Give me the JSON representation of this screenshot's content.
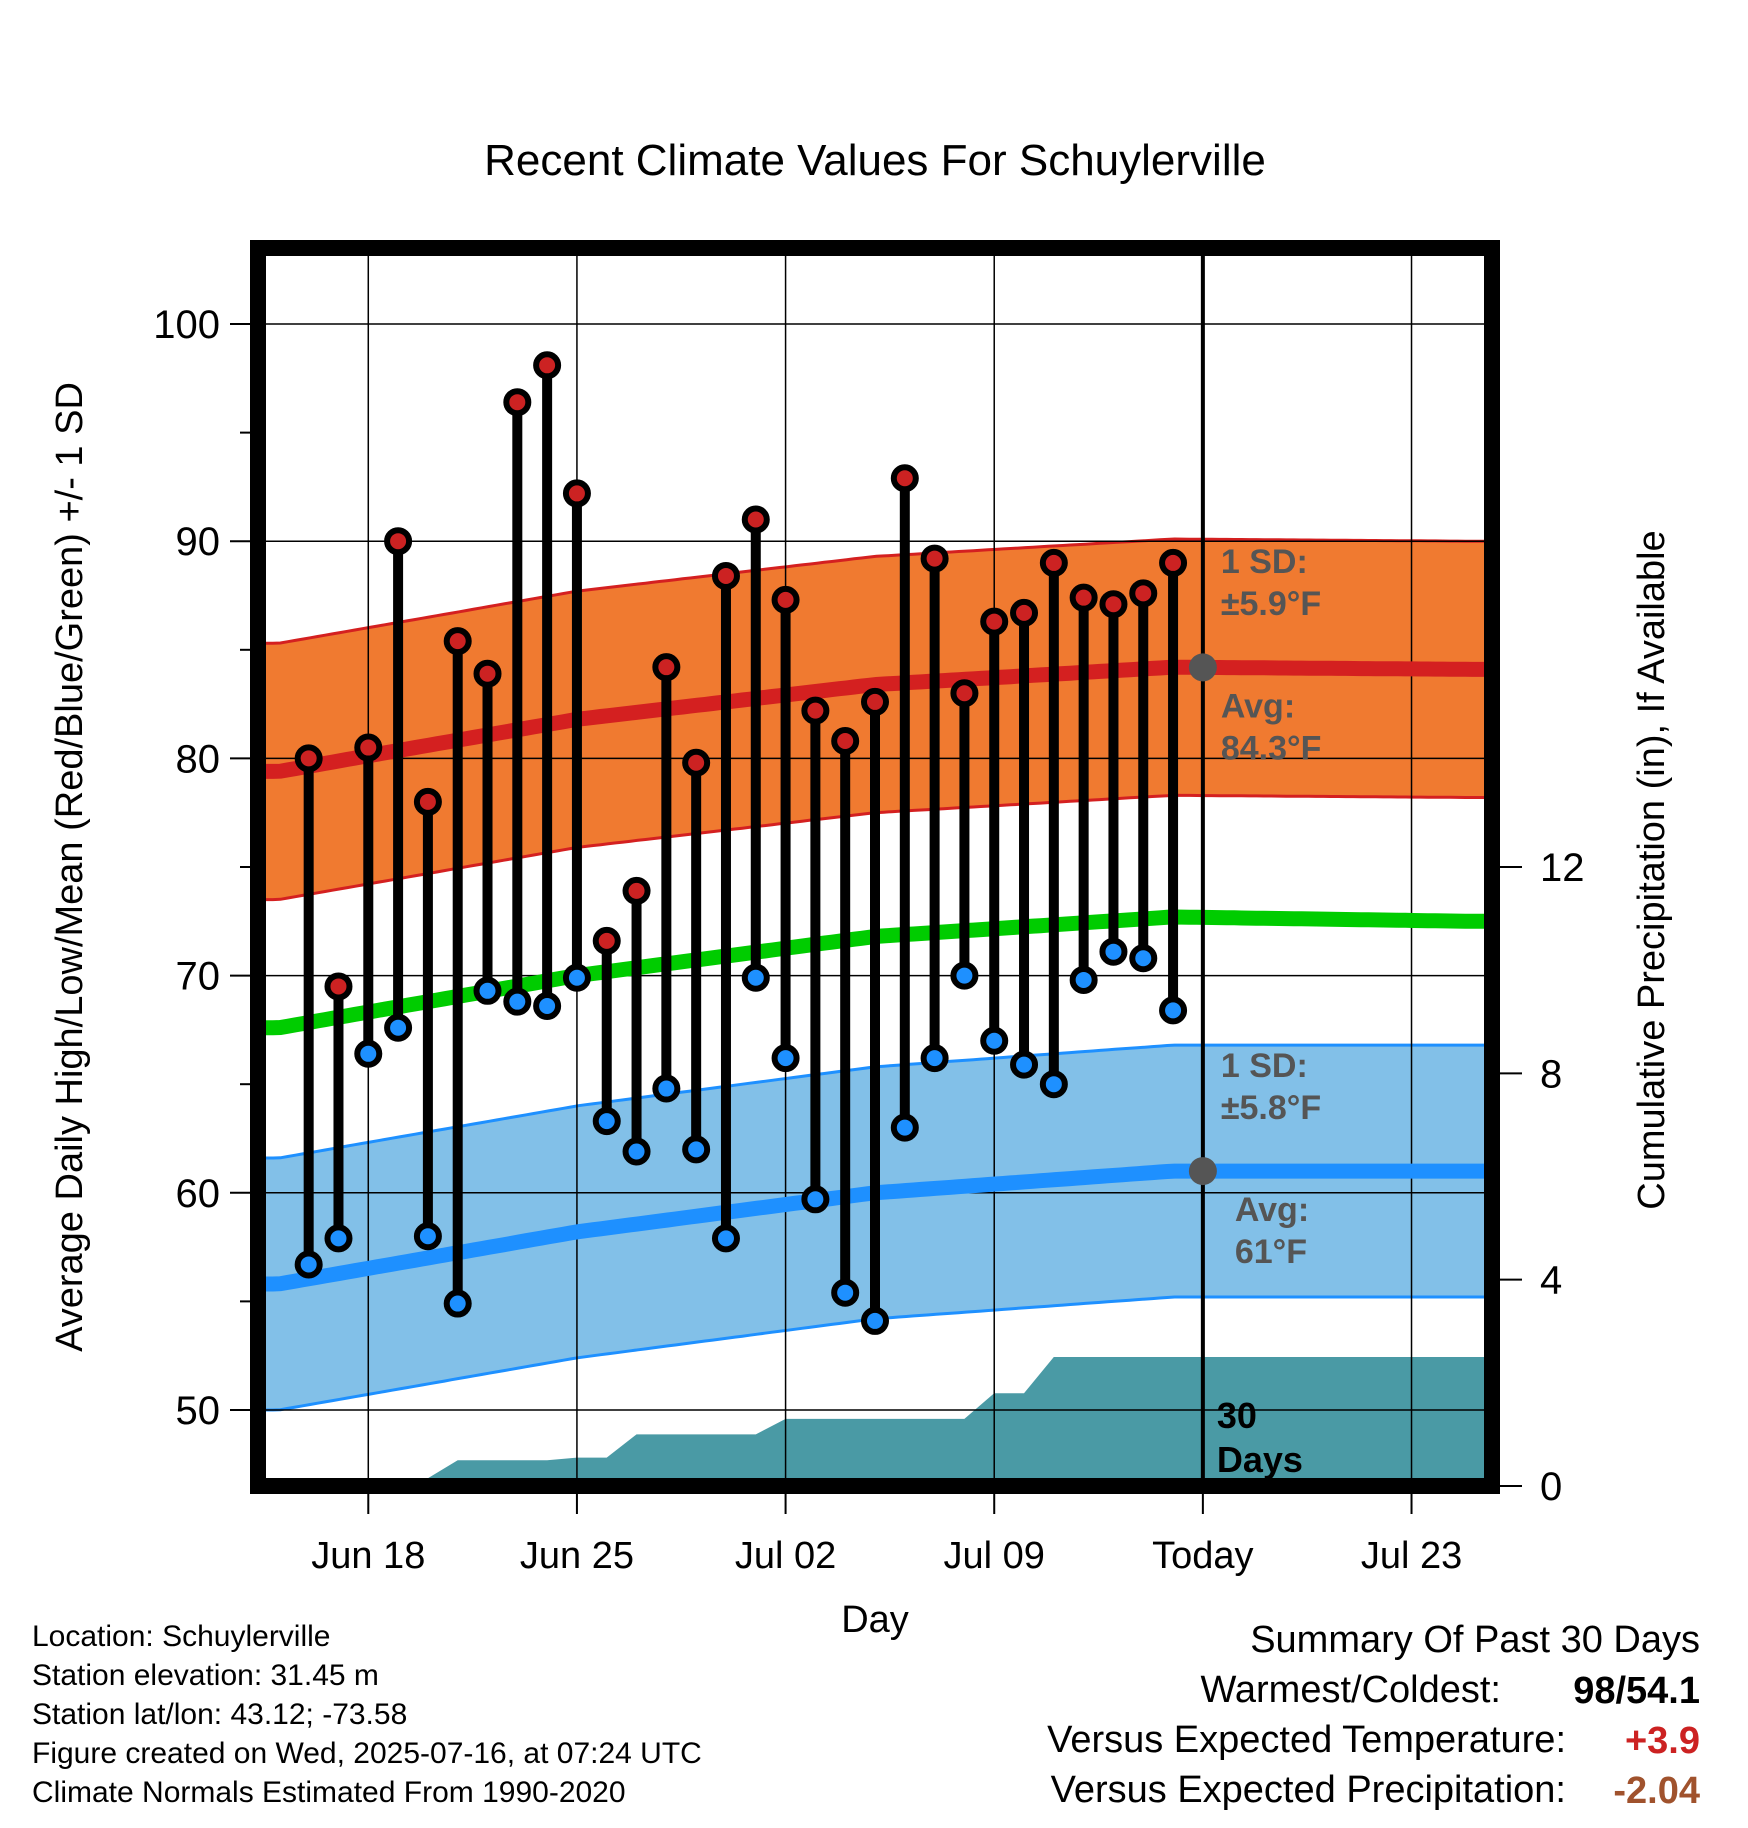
{
  "chart_data": {
    "type": "line",
    "title": "Recent Climate Values For Schuylerville",
    "xlabel": "Day",
    "ylabel": "Average Daily High/Low/Mean (Red/Blue/Green) +/- 1 SD",
    "y2label": "Cumulative Precipitation (in), If Available",
    "x_ticks": [
      "Jun 18",
      "Jun 25",
      "Jul 02",
      "Jul 09",
      "Today",
      "Jul 23"
    ],
    "x_tick_days": [
      3,
      10,
      17,
      24,
      31,
      38
    ],
    "xlim": [
      -0.7,
      40.7
    ],
    "y_ticks": [
      50,
      60,
      70,
      80,
      90,
      100
    ],
    "ylim": [
      46.5,
      103.5
    ],
    "y2_ticks": [
      0,
      4,
      8,
      12
    ],
    "y2lim": [
      0,
      24
    ],
    "today_day": 31,
    "grid": true,
    "daily_days": [
      1,
      2,
      3,
      4,
      5,
      6,
      7,
      8,
      9,
      10,
      11,
      12,
      13,
      14,
      15,
      16,
      17,
      18,
      19,
      20,
      21,
      22,
      23,
      24,
      25,
      26,
      27,
      28,
      29,
      30
    ],
    "daily_high": [
      80.0,
      69.5,
      80.5,
      90.0,
      78.0,
      85.4,
      83.9,
      96.4,
      98.1,
      92.2,
      71.6,
      73.9,
      84.2,
      79.8,
      88.4,
      91.0,
      87.3,
      82.2,
      80.8,
      82.6,
      92.9,
      89.2,
      83.0,
      86.3,
      86.7,
      89.0,
      87.4,
      87.1,
      87.6,
      89.0
    ],
    "daily_low": [
      56.7,
      57.9,
      66.4,
      67.6,
      58.0,
      54.9,
      69.3,
      68.8,
      68.6,
      69.9,
      63.3,
      61.9,
      64.8,
      62.0,
      57.9,
      69.9,
      66.2,
      59.7,
      55.4,
      54.1,
      63.0,
      66.2,
      70.0,
      67.0,
      65.9,
      65.0,
      69.8,
      71.1,
      70.8,
      68.4
    ],
    "normal_days": [
      0,
      10,
      20,
      30,
      40
    ],
    "normal_high": [
      79.4,
      81.8,
      83.4,
      84.2,
      84.1
    ],
    "normal_high_sd": 5.9,
    "normal_low": [
      55.8,
      58.2,
      60.0,
      61.0,
      61.0
    ],
    "normal_low_sd": 5.8,
    "normal_mean": [
      67.6,
      70.0,
      71.8,
      72.7,
      72.5
    ],
    "precip_cumulative": [
      0,
      0,
      0.05,
      0.15,
      0.15,
      0.15,
      0.5,
      0.5,
      0.5,
      0.5,
      0.55,
      0.55,
      1.0,
      1.0,
      1.0,
      1.0,
      1.0,
      1.3,
      1.3,
      1.3,
      1.3,
      1.3,
      1.3,
      1.3,
      1.8,
      1.8,
      2.5,
      2.5,
      2.5,
      2.5,
      2.5,
      2.5,
      2.5,
      2.5,
      2.5,
      2.5,
      2.5,
      2.5,
      2.5,
      2.5,
      2.5
    ],
    "annotations": {
      "high_sd_label": [
        "1 SD:",
        "±5.9°F"
      ],
      "high_avg_label": [
        "Avg:",
        "84.3°F"
      ],
      "low_sd_label": [
        "1 SD:",
        "±5.8°F"
      ],
      "low_avg_label": [
        "Avg:",
        "61°F"
      ],
      "days_label": [
        "30",
        "Days"
      ]
    },
    "colors": {
      "high_band": "#f07a30",
      "high_line": "#d42020",
      "low_band": "#82c0e8",
      "low_line": "#1e90ff",
      "mean_line": "#00cc00",
      "precip": "#4a9aa5",
      "high_marker": "#cc2222",
      "low_marker": "#1e90ff",
      "annotation_text": "#555555"
    }
  },
  "info": {
    "location": "Location: Schuylerville",
    "elevation": "Station elevation: 31.45 m",
    "latlon": "Station lat/lon: 43.12; -73.58",
    "created": "Figure created on Wed, 2025-07-16, at 07:24 UTC",
    "normals": "Climate Normals Estimated From 1990-2020"
  },
  "summary": {
    "heading": "Summary Of Past 30 Days",
    "warmest_coldest_label": "Warmest/Coldest:",
    "warmest_coldest_value": "98/54.1",
    "temp_label": "Versus Expected Temperature:",
    "temp_value": "+3.9",
    "temp_color": "#cc2222",
    "precip_label": "Versus Expected Precipitation:",
    "precip_value": "-2.04",
    "precip_color": "#a0522d"
  }
}
